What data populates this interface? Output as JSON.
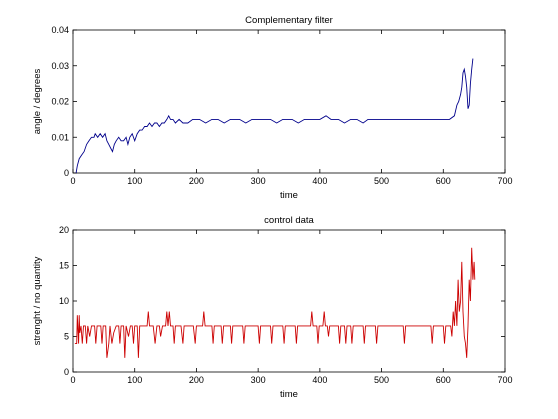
{
  "chart_data": [
    {
      "type": "line",
      "title": "Complementary filter",
      "xlabel": "time",
      "ylabel": "angle / degrees",
      "xlim": [
        0,
        700
      ],
      "ylim": [
        0,
        0.04
      ],
      "xticks": [
        0,
        100,
        200,
        300,
        400,
        500,
        600,
        700
      ],
      "yticks": [
        0,
        0.01,
        0.02,
        0.03,
        0.04
      ],
      "ytick_labels": [
        "0",
        "0.01",
        "0.02",
        "0.03",
        "0.04"
      ],
      "grid": false,
      "series": [
        {
          "color": "#00008b",
          "points": [
            [
              5,
              0
            ],
            [
              7,
              0.002
            ],
            [
              10,
              0.004
            ],
            [
              14,
              0.005
            ],
            [
              18,
              0.006
            ],
            [
              22,
              0.008
            ],
            [
              26,
              0.009
            ],
            [
              30,
              0.01
            ],
            [
              34,
              0.01
            ],
            [
              36,
              0.011
            ],
            [
              40,
              0.01
            ],
            [
              44,
              0.011
            ],
            [
              48,
              0.01
            ],
            [
              52,
              0.011
            ],
            [
              55,
              0.009
            ],
            [
              58,
              0.008
            ],
            [
              61,
              0.007
            ],
            [
              64,
              0.006
            ],
            [
              67,
              0.008
            ],
            [
              70,
              0.009
            ],
            [
              74,
              0.01
            ],
            [
              78,
              0.009
            ],
            [
              82,
              0.009
            ],
            [
              86,
              0.01
            ],
            [
              89,
              0.008
            ],
            [
              92,
              0.01
            ],
            [
              96,
              0.011
            ],
            [
              100,
              0.009
            ],
            [
              104,
              0.011
            ],
            [
              108,
              0.012
            ],
            [
              112,
              0.012
            ],
            [
              116,
              0.013
            ],
            [
              120,
              0.013
            ],
            [
              124,
              0.014
            ],
            [
              128,
              0.013
            ],
            [
              132,
              0.014
            ],
            [
              136,
              0.014
            ],
            [
              140,
              0.013
            ],
            [
              144,
              0.014
            ],
            [
              148,
              0.014
            ],
            [
              152,
              0.015
            ],
            [
              155,
              0.016
            ],
            [
              158,
              0.015
            ],
            [
              162,
              0.015
            ],
            [
              166,
              0.014
            ],
            [
              172,
              0.015
            ],
            [
              178,
              0.014
            ],
            [
              186,
              0.014
            ],
            [
              194,
              0.015
            ],
            [
              205,
              0.015
            ],
            [
              215,
              0.014
            ],
            [
              225,
              0.015
            ],
            [
              235,
              0.015
            ],
            [
              245,
              0.014
            ],
            [
              255,
              0.015
            ],
            [
              270,
              0.015
            ],
            [
              280,
              0.014
            ],
            [
              290,
              0.015
            ],
            [
              305,
              0.015
            ],
            [
              320,
              0.015
            ],
            [
              330,
              0.014
            ],
            [
              340,
              0.015
            ],
            [
              355,
              0.015
            ],
            [
              365,
              0.014
            ],
            [
              375,
              0.015
            ],
            [
              390,
              0.015
            ],
            [
              400,
              0.015
            ],
            [
              410,
              0.016
            ],
            [
              418,
              0.015
            ],
            [
              430,
              0.015
            ],
            [
              440,
              0.014
            ],
            [
              450,
              0.015
            ],
            [
              460,
              0.015
            ],
            [
              470,
              0.014
            ],
            [
              478,
              0.015
            ],
            [
              500,
              0.015
            ],
            [
              530,
              0.015
            ],
            [
              560,
              0.015
            ],
            [
              590,
              0.015
            ],
            [
              610,
              0.015
            ],
            [
              618,
              0.016
            ],
            [
              622,
              0.019
            ],
            [
              625,
              0.02
            ],
            [
              628,
              0.022
            ],
            [
              630,
              0.024
            ],
            [
              632,
              0.028
            ],
            [
              634,
              0.029
            ],
            [
              636,
              0.027
            ],
            [
              638,
              0.024
            ],
            [
              640,
              0.018
            ],
            [
              642,
              0.019
            ],
            [
              644,
              0.025
            ],
            [
              646,
              0.029
            ],
            [
              648,
              0.032
            ]
          ]
        }
      ]
    },
    {
      "type": "line",
      "title": "control data",
      "xlabel": "time",
      "ylabel": "strenght / no quantity",
      "xlim": [
        0,
        700
      ],
      "ylim": [
        0,
        20
      ],
      "xticks": [
        0,
        100,
        200,
        300,
        400,
        500,
        600,
        700
      ],
      "yticks": [
        0,
        5,
        10,
        15,
        20
      ],
      "ytick_labels": [
        "0",
        "5",
        "10",
        "15",
        "20"
      ],
      "grid": false,
      "series": [
        {
          "color": "#cc0000",
          "points": [
            [
              3,
              4
            ],
            [
              6,
              4
            ],
            [
              7,
              8
            ],
            [
              9,
              4
            ],
            [
              10,
              8
            ],
            [
              11,
              5.5
            ],
            [
              13,
              6.5
            ],
            [
              15,
              4
            ],
            [
              17,
              6.5
            ],
            [
              20,
              6.5
            ],
            [
              22,
              4
            ],
            [
              24,
              6.5
            ],
            [
              27,
              5
            ],
            [
              30,
              6.5
            ],
            [
              35,
              6.5
            ],
            [
              37,
              4
            ],
            [
              39,
              6.5
            ],
            [
              45,
              6.5
            ],
            [
              47,
              4
            ],
            [
              49,
              6.5
            ],
            [
              53,
              6.5
            ],
            [
              55,
              2
            ],
            [
              58,
              4
            ],
            [
              60,
              6.5
            ],
            [
              63,
              4
            ],
            [
              66,
              5.5
            ],
            [
              70,
              6.5
            ],
            [
              74,
              6.5
            ],
            [
              76,
              4
            ],
            [
              78,
              6.5
            ],
            [
              82,
              6.5
            ],
            [
              84,
              2
            ],
            [
              86,
              6.5
            ],
            [
              90,
              5
            ],
            [
              93,
              6.5
            ],
            [
              96,
              6.5
            ],
            [
              98,
              4
            ],
            [
              100,
              6.5
            ],
            [
              104,
              6.5
            ],
            [
              106,
              2
            ],
            [
              108,
              6.5
            ],
            [
              115,
              6.5
            ],
            [
              120,
              6.5
            ],
            [
              122,
              8.5
            ],
            [
              124,
              6.5
            ],
            [
              130,
              6.5
            ],
            [
              133,
              4
            ],
            [
              136,
              6.5
            ],
            [
              140,
              6.5
            ],
            [
              142,
              5
            ],
            [
              145,
              6.5
            ],
            [
              150,
              6.5
            ],
            [
              152,
              8.5
            ],
            [
              154,
              6.5
            ],
            [
              156,
              8.5
            ],
            [
              158,
              6.5
            ],
            [
              162,
              6.5
            ],
            [
              164,
              4
            ],
            [
              166,
              6.5
            ],
            [
              175,
              6.5
            ],
            [
              178,
              4
            ],
            [
              180,
              6.5
            ],
            [
              190,
              6.5
            ],
            [
              195,
              6.5
            ],
            [
              198,
              4
            ],
            [
              200,
              6.5
            ],
            [
              210,
              6.5
            ],
            [
              212,
              8.5
            ],
            [
              214,
              6.5
            ],
            [
              225,
              6.5
            ],
            [
              227,
              4
            ],
            [
              229,
              6.5
            ],
            [
              240,
              6.5
            ],
            [
              242,
              4
            ],
            [
              244,
              6.5
            ],
            [
              255,
              6.5
            ],
            [
              257,
              4
            ],
            [
              259,
              6.5
            ],
            [
              275,
              6.5
            ],
            [
              277,
              4
            ],
            [
              279,
              6.5
            ],
            [
              300,
              6.5
            ],
            [
              302,
              4
            ],
            [
              304,
              6.5
            ],
            [
              320,
              6.5
            ],
            [
              322,
              4
            ],
            [
              324,
              6.5
            ],
            [
              340,
              6.5
            ],
            [
              342,
              4
            ],
            [
              344,
              6.5
            ],
            [
              360,
              6.5
            ],
            [
              362,
              4
            ],
            [
              364,
              6.5
            ],
            [
              385,
              6.5
            ],
            [
              387,
              8.5
            ],
            [
              389,
              6.5
            ],
            [
              395,
              6.5
            ],
            [
              397,
              4
            ],
            [
              399,
              6.5
            ],
            [
              405,
              6.5
            ],
            [
              407,
              8.5
            ],
            [
              409,
              6.5
            ],
            [
              412,
              6.5
            ],
            [
              414,
              5
            ],
            [
              416,
              6.5
            ],
            [
              430,
              6.5
            ],
            [
              432,
              4
            ],
            [
              434,
              6.5
            ],
            [
              440,
              6.5
            ],
            [
              442,
              4
            ],
            [
              444,
              6.5
            ],
            [
              450,
              6.5
            ],
            [
              452,
              4
            ],
            [
              454,
              6.5
            ],
            [
              470,
              6.5
            ],
            [
              472,
              4
            ],
            [
              474,
              6.5
            ],
            [
              490,
              6.5
            ],
            [
              492,
              4
            ],
            [
              494,
              6.5
            ],
            [
              535,
              6.5
            ],
            [
              537,
              4
            ],
            [
              539,
              6.5
            ],
            [
              580,
              6.5
            ],
            [
              582,
              4
            ],
            [
              584,
              6.5
            ],
            [
              600,
              6.5
            ],
            [
              602,
              4
            ],
            [
              604,
              6.5
            ],
            [
              612,
              6.5
            ],
            [
              614,
              5
            ],
            [
              616,
              8.5
            ],
            [
              618,
              6.5
            ],
            [
              620,
              10
            ],
            [
              622,
              6.5
            ],
            [
              624,
              13
            ],
            [
              626,
              8.5
            ],
            [
              628,
              10
            ],
            [
              630,
              15.5
            ],
            [
              632,
              8.5
            ],
            [
              634,
              5
            ],
            [
              636,
              4
            ],
            [
              638,
              2
            ],
            [
              640,
              6.5
            ],
            [
              642,
              13
            ],
            [
              644,
              10
            ],
            [
              646,
              17.5
            ],
            [
              648,
              13
            ],
            [
              650,
              15.5
            ],
            [
              651,
              13
            ]
          ]
        }
      ]
    }
  ]
}
